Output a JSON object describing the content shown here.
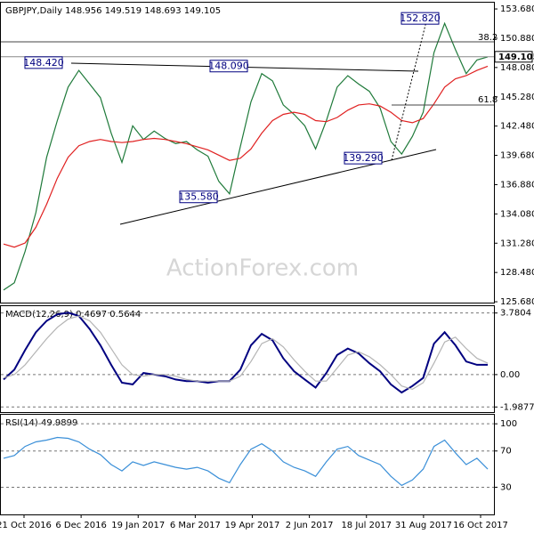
{
  "chart_data": [
    {
      "type": "line",
      "title": "GBPJPY,Daily  148.956 149.519 148.693 149.105",
      "x_labels": [
        "21 Oct 2016",
        "6 Dec 2016",
        "19 Jan 2017",
        "6 Mar 2017",
        "19 Apr 2017",
        "2 Jun 2017",
        "18 Jul 2017",
        "31 Aug 2017",
        "16 Oct 2017"
      ],
      "series": [
        {
          "name": "GBPJPY",
          "color": "#1f7a3a",
          "values": [
            126.8,
            127.5,
            130.5,
            134.2,
            139.5,
            143.0,
            146.2,
            147.8,
            146.5,
            145.2,
            141.8,
            139.0,
            142.5,
            141.2,
            142.0,
            141.3,
            140.8,
            141.0,
            140.2,
            139.6,
            137.2,
            136.0,
            140.5,
            144.8,
            147.5,
            146.8,
            144.5,
            143.6,
            142.5,
            140.3,
            143.0,
            146.2,
            147.3,
            146.5,
            145.8,
            144.2,
            141.0,
            139.8,
            141.5,
            143.8,
            149.5,
            152.3,
            149.8,
            147.5,
            148.8,
            149.1
          ]
        },
        {
          "name": "MA",
          "color": "#e02020",
          "values": [
            131.2,
            130.9,
            131.3,
            132.8,
            135.0,
            137.5,
            139.5,
            140.6,
            141.0,
            141.2,
            141.0,
            140.9,
            141.0,
            141.2,
            141.3,
            141.2,
            141.0,
            140.8,
            140.5,
            140.2,
            139.7,
            139.2,
            139.4,
            140.3,
            141.8,
            143.0,
            143.6,
            143.8,
            143.6,
            143.0,
            142.9,
            143.3,
            144.0,
            144.5,
            144.6,
            144.4,
            143.8,
            143.0,
            142.8,
            143.2,
            144.6,
            146.2,
            147.0,
            147.3,
            147.8,
            148.2
          ]
        }
      ],
      "ylim": [
        125.6,
        154.28
      ],
      "yticks": [
        {
          "value": 153.68,
          "label": "153.680"
        },
        {
          "value": 150.88,
          "label": "150.880"
        },
        {
          "value": 148.08,
          "label": "148.080"
        },
        {
          "value": 145.28,
          "label": "145.280"
        },
        {
          "value": 142.48,
          "label": "142.480"
        },
        {
          "value": 139.68,
          "label": "139.680"
        },
        {
          "value": 136.88,
          "label": "136.880"
        },
        {
          "value": 134.08,
          "label": "134.080"
        },
        {
          "value": 131.28,
          "label": "131.280"
        },
        {
          "value": 128.48,
          "label": "128.480"
        },
        {
          "value": 125.68,
          "label": "125.680"
        }
      ],
      "last_price": 149.105,
      "annotations": [
        {
          "value": 152.82,
          "label": "152.820"
        },
        {
          "value": 148.42,
          "label": "148.420"
        },
        {
          "value": 148.09,
          "label": "148.090"
        },
        {
          "value": 135.58,
          "label": "135.580"
        },
        {
          "value": 139.29,
          "label": "139.290"
        }
      ],
      "fib_labels": [
        "38.2",
        "61.8"
      ],
      "watermark": "ActionForex.com"
    },
    {
      "type": "line",
      "title": "MACD(12,26,9) 0.4697 0.5644",
      "series": [
        {
          "name": "MACD",
          "color": "#000080",
          "values": [
            -0.3,
            0.3,
            1.5,
            2.6,
            3.3,
            3.7,
            3.8,
            3.6,
            2.8,
            1.8,
            0.6,
            -0.5,
            -0.6,
            0.1,
            0.0,
            -0.1,
            -0.3,
            -0.4,
            -0.4,
            -0.5,
            -0.4,
            -0.4,
            0.3,
            1.8,
            2.5,
            2.1,
            1.0,
            0.2,
            -0.3,
            -0.8,
            0.1,
            1.2,
            1.6,
            1.3,
            0.7,
            0.2,
            -0.6,
            -1.1,
            -0.7,
            -0.2,
            1.9,
            2.6,
            1.8,
            0.8,
            0.6,
            0.6
          ]
        },
        {
          "name": "Signal",
          "color": "#b4b4b4",
          "values": [
            -0.2,
            0.0,
            0.6,
            1.4,
            2.2,
            2.9,
            3.4,
            3.6,
            3.3,
            2.6,
            1.6,
            0.6,
            0.0,
            -0.1,
            0.0,
            0.0,
            -0.1,
            -0.3,
            -0.4,
            -0.4,
            -0.4,
            -0.4,
            -0.1,
            0.8,
            1.9,
            2.2,
            1.7,
            0.9,
            0.2,
            -0.4,
            -0.4,
            0.4,
            1.2,
            1.4,
            1.1,
            0.6,
            0.0,
            -0.7,
            -0.9,
            -0.5,
            0.7,
            2.0,
            2.3,
            1.6,
            1.0,
            0.7
          ]
        }
      ],
      "ylim": [
        -2.3,
        4.2
      ],
      "yticks": [
        3.7804,
        {
          "value": 0,
          "label": "0.00"
        },
        -1.9877
      ]
    },
    {
      "type": "line",
      "title": "RSI(14) 49.9899",
      "series": [
        {
          "name": "RSI",
          "color": "#3a8fd8",
          "values": [
            62,
            65,
            75,
            80,
            82,
            85,
            84,
            80,
            72,
            66,
            55,
            48,
            58,
            54,
            58,
            55,
            52,
            50,
            52,
            48,
            40,
            35,
            55,
            72,
            78,
            70,
            58,
            52,
            48,
            42,
            58,
            72,
            75,
            65,
            60,
            55,
            42,
            32,
            38,
            50,
            75,
            82,
            68,
            55,
            62,
            50
          ]
        }
      ],
      "ylim": [
        0,
        110
      ],
      "yticks": [
        100,
        70,
        30
      ]
    }
  ]
}
